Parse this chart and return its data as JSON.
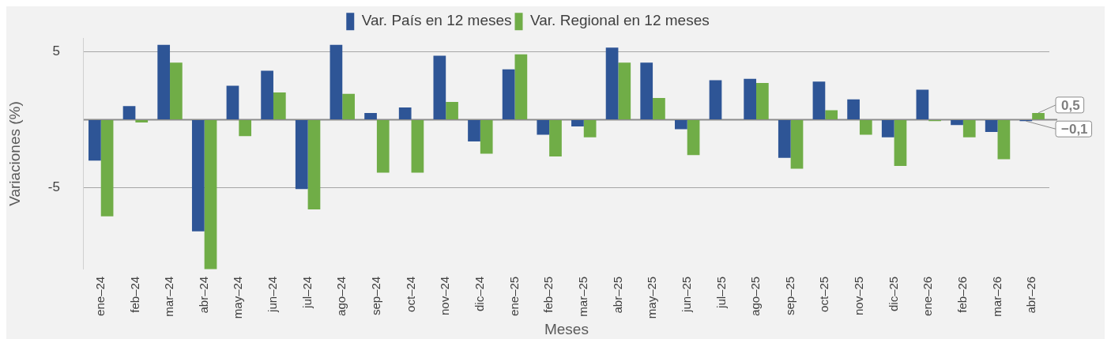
{
  "chart_data": {
    "type": "bar",
    "categories": [
      "ene–24",
      "feb–24",
      "mar–24",
      "abr–24",
      "may–24",
      "jun–24",
      "jul–24",
      "ago–24",
      "sep–24",
      "oct–24",
      "nov–24",
      "dic–24",
      "ene–25",
      "feb–25",
      "mar–25",
      "abr–25",
      "may–25",
      "jun–25",
      "jul–25",
      "ago–25",
      "sep–25",
      "oct–25",
      "nov–25",
      "dic–25",
      "ene–26",
      "feb–26",
      "mar–26",
      "abr–26"
    ],
    "series": [
      {
        "name": "Var. País en 12 meses",
        "color": "#2e5596",
        "values": [
          -3.0,
          1.0,
          5.5,
          -8.2,
          2.5,
          3.6,
          -5.1,
          5.5,
          0.5,
          0.9,
          4.7,
          -1.6,
          3.7,
          -1.1,
          -0.5,
          5.3,
          4.2,
          -0.7,
          2.9,
          3.0,
          -2.8,
          2.8,
          1.5,
          -1.3,
          2.2,
          -0.4,
          -0.9,
          -0.1
        ],
        "value_labels": [
          null,
          null,
          null,
          null,
          null,
          null,
          null,
          null,
          null,
          null,
          null,
          null,
          null,
          null,
          null,
          null,
          null,
          null,
          null,
          null,
          null,
          null,
          null,
          null,
          null,
          null,
          null,
          "−0,1"
        ]
      },
      {
        "name": "Var. Regional en 12 meses",
        "color": "#70ad47",
        "values": [
          -7.1,
          -0.2,
          4.2,
          -11.0,
          -1.2,
          2.0,
          -6.6,
          1.9,
          -3.9,
          -3.9,
          1.3,
          -2.5,
          4.8,
          -2.7,
          -1.3,
          4.2,
          1.6,
          -2.6,
          0.0,
          2.7,
          -3.6,
          0.7,
          -1.1,
          -3.4,
          -0.1,
          -1.3,
          -2.9,
          0.5
        ],
        "value_labels": [
          null,
          null,
          null,
          null,
          null,
          null,
          null,
          null,
          null,
          null,
          null,
          null,
          null,
          null,
          null,
          null,
          null,
          null,
          null,
          null,
          null,
          null,
          null,
          null,
          null,
          null,
          null,
          "0,5"
        ]
      }
    ],
    "xlabel": "Meses",
    "ylabel": "Variaciones (%)",
    "ylim": [
      -11,
      6
    ],
    "yticks": [
      -5,
      {
        "value": 0,
        "label": null
      },
      5
    ],
    "grid": "y",
    "legend": "top"
  }
}
